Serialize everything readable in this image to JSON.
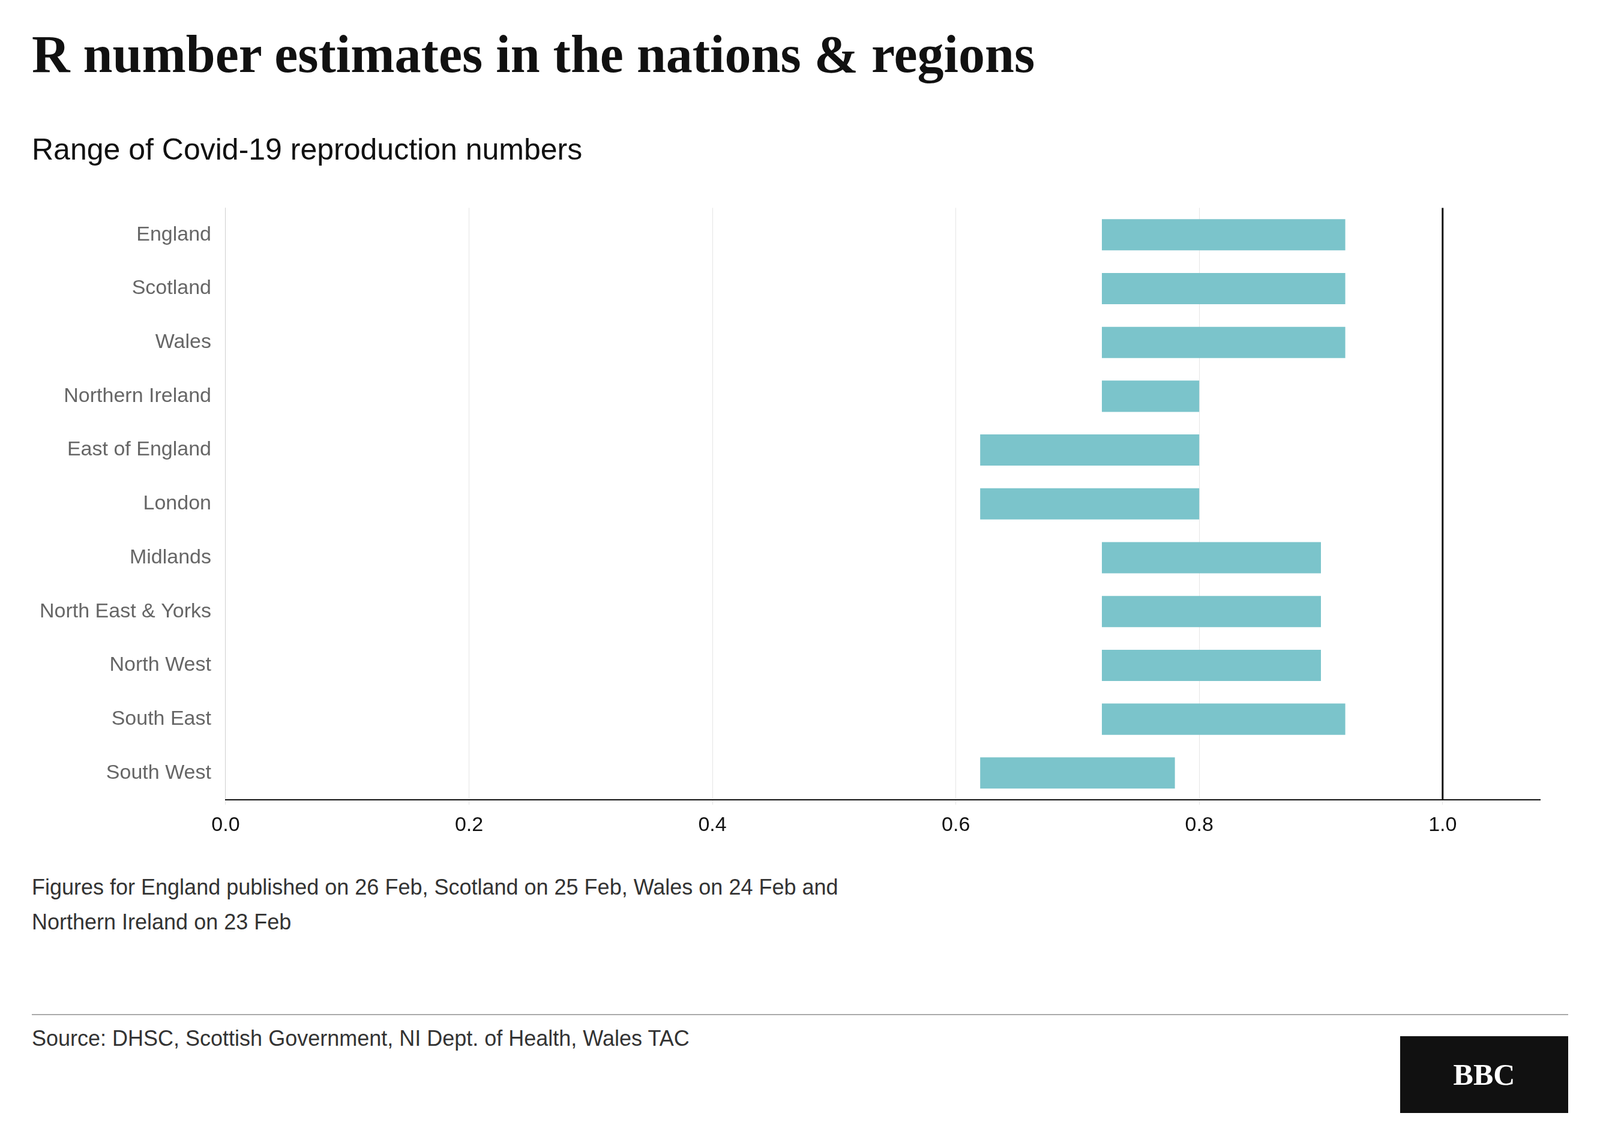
{
  "chart_data": {
    "type": "bar",
    "orientation": "horizontal",
    "title": "R number estimates in the nations & regions",
    "subtitle": "Range of Covid-19 reproduction numbers",
    "categories": [
      "England",
      "Scotland",
      "Wales",
      "Northern Ireland",
      "East of England",
      "London",
      "Midlands",
      "North East & Yorks",
      "North West",
      "South East",
      "South West"
    ],
    "values": [
      [
        0.72,
        0.92
      ],
      [
        0.72,
        0.92
      ],
      [
        0.72,
        0.92
      ],
      [
        0.72,
        0.8
      ],
      [
        0.62,
        0.8
      ],
      [
        0.62,
        0.8
      ],
      [
        0.72,
        0.9
      ],
      [
        0.72,
        0.9
      ],
      [
        0.72,
        0.9
      ],
      [
        0.72,
        0.92
      ],
      [
        0.62,
        0.78
      ]
    ],
    "color": "#7bc4cb",
    "xlim": [
      0.0,
      1.08
    ],
    "xticks": [
      {
        "value": 0.0,
        "label": "0.0"
      },
      0.2,
      0.4,
      0.6,
      0.8,
      {
        "value": 1.0,
        "label": "1.0"
      }
    ],
    "grid": true,
    "reference_line": {
      "x": 1.0,
      "color": "#111111"
    },
    "annotations": [
      "Figures for England published on 26 Feb, Scotland on 25 Feb, Wales on 24 Feb and",
      "Northern Ireland on 23 Feb",
      "Source: DHSC, Scottish Government, NI Dept. of Health, Wales TAC",
      "BBC"
    ]
  }
}
